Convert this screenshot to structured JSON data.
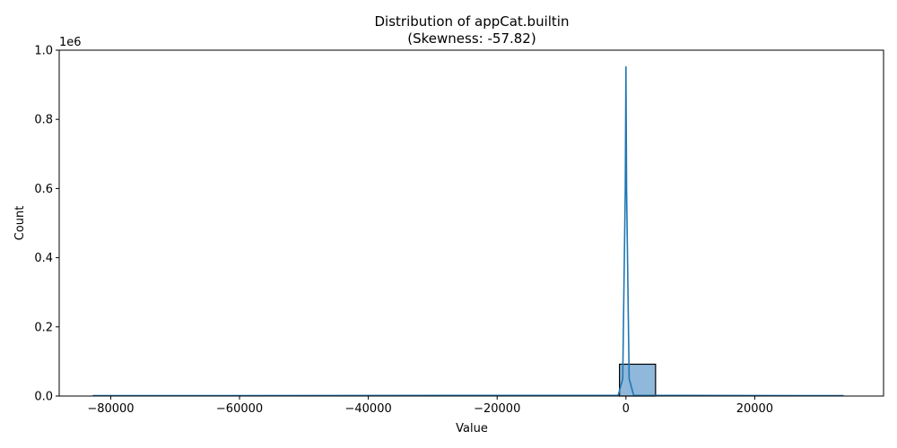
{
  "chart_data": {
    "type": "bar",
    "title": "Distribution of appCat.builtin",
    "subtitle": "(Skewness: -57.82)",
    "xlabel": "Value",
    "ylabel": "Count",
    "y_offset_label": "1e6",
    "xlim": [
      -88000,
      40000
    ],
    "ylim": [
      0,
      1.0
    ],
    "y_scale_factor": 1000000,
    "x_ticks": [
      -80000,
      -60000,
      -40000,
      -20000,
      0,
      20000
    ],
    "x_tick_labels": [
      "−80000",
      "−60000",
      "−40000",
      "−20000",
      "0",
      "20000"
    ],
    "y_ticks": [
      0.0,
      0.2,
      0.4,
      0.6,
      0.8,
      1.0
    ],
    "y_tick_labels": [
      "0.0",
      "0.2",
      "0.4",
      "0.6",
      "0.8",
      "1.0"
    ],
    "bars": [
      {
        "x0": -1000,
        "x1": 4600,
        "value": 0.092
      }
    ],
    "kde_line": {
      "x": [
        -82800,
        -1200,
        -500,
        -100,
        0,
        100,
        500,
        1200,
        33800
      ],
      "y": [
        0.001,
        0.002,
        0.05,
        0.6,
        0.953,
        0.6,
        0.05,
        0.002,
        0.001
      ]
    },
    "grid": false,
    "colors": {
      "bar_fill": "#8fb8da",
      "bar_edge": "#000000",
      "line": "#1f77b4"
    }
  }
}
